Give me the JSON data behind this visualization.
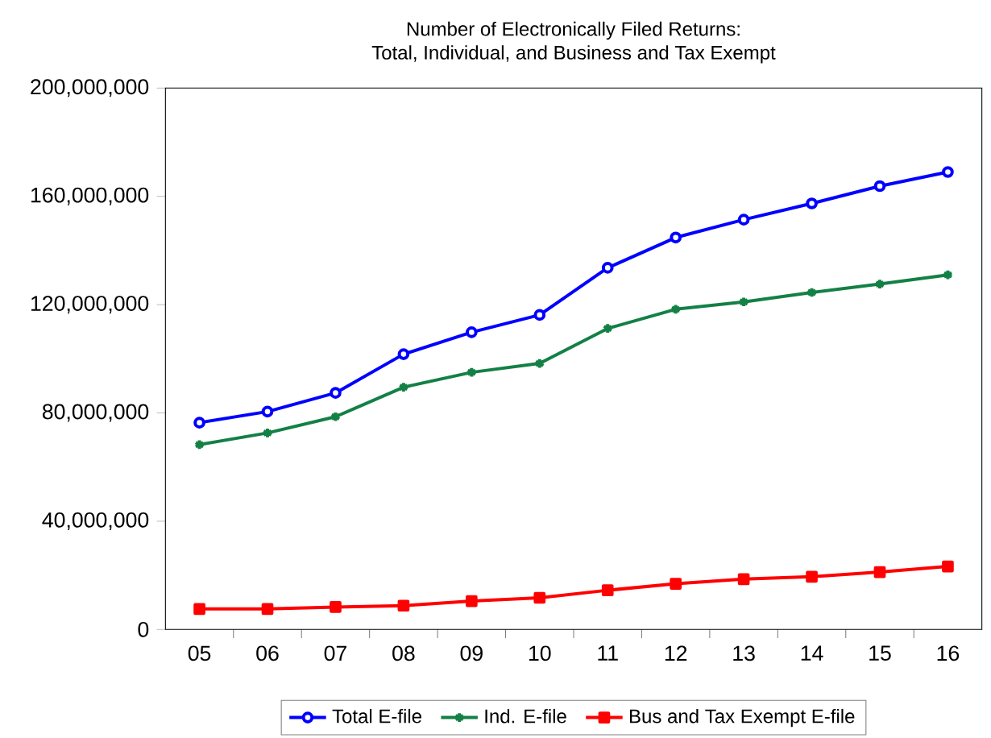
{
  "chart_data": {
    "type": "line",
    "title": "Number of Electronically Filed Returns:",
    "subtitle": "Total, Individual, and Business and Tax Exempt",
    "categories": [
      "05",
      "06",
      "07",
      "08",
      "09",
      "10",
      "11",
      "12",
      "13",
      "14",
      "15",
      "16"
    ],
    "series": [
      {
        "name": "Total E-file",
        "color": "#0000ff",
        "marker": "circle",
        "values": [
          76400000,
          80500000,
          87400000,
          101700000,
          109800000,
          116200000,
          133600000,
          144800000,
          151400000,
          157400000,
          163800000,
          169000000
        ]
      },
      {
        "name": "Ind. E-file",
        "color": "#138046",
        "marker": "cross",
        "values": [
          68300000,
          72600000,
          78600000,
          89500000,
          95000000,
          98300000,
          111200000,
          118300000,
          121000000,
          124500000,
          127600000,
          131000000
        ]
      },
      {
        "name": "Bus and Tax Exempt E-file",
        "color": "#ff0000",
        "marker": "square",
        "values": [
          7600000,
          7600000,
          8300000,
          8800000,
          10500000,
          11700000,
          14500000,
          16900000,
          18600000,
          19500000,
          21200000,
          23300000
        ]
      }
    ],
    "ylim": [
      0,
      200000000
    ],
    "yticks": [
      {
        "value": 0,
        "label": "0"
      },
      {
        "value": 40000000,
        "label": "40,000,000"
      },
      {
        "value": 80000000,
        "label": "80,000,000"
      },
      {
        "value": 120000000,
        "label": "120,000,000"
      },
      {
        "value": 160000000,
        "label": "160,000,000"
      },
      {
        "value": 200000000,
        "label": "200,000,000"
      }
    ],
    "grid": false,
    "legend": "bottom",
    "line_style": "solid"
  }
}
